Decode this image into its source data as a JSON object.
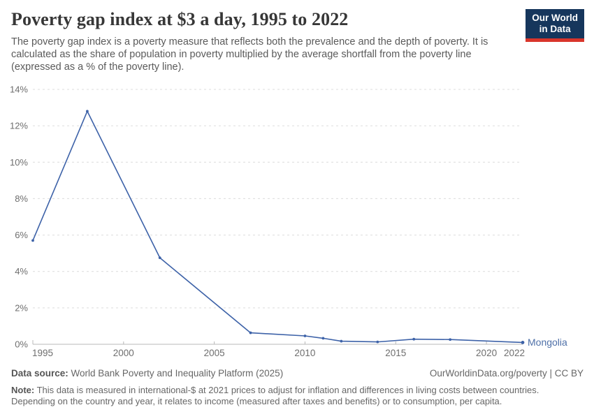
{
  "header": {
    "title": "Poverty gap index at $3 a day, 1995 to 2022",
    "subtitle": "The poverty gap index is a poverty measure that reflects both the prevalence and the depth of poverty. It is calculated as the share of population in poverty multiplied by the average shortfall from the poverty line (expressed as a % of the poverty line).",
    "logo": {
      "line1": "Our World",
      "line2": "in Data",
      "bg_color": "#16365c",
      "stripe_color": "#d9352b"
    }
  },
  "chart_data": {
    "type": "line",
    "title": "Poverty gap index at $3 a day, 1995 to 2022",
    "xlabel": "",
    "ylabel": "",
    "xlim": [
      1995,
      2022
    ],
    "ylim": [
      0,
      14
    ],
    "x_ticks": [
      1995,
      2000,
      2005,
      2010,
      2015,
      2020,
      2022
    ],
    "y_ticks": [
      0,
      2,
      4,
      6,
      8,
      10,
      12,
      14
    ],
    "y_tick_suffix": "%",
    "grid": "horizontal-dashed",
    "legend_position": "end-of-line-label",
    "series": [
      {
        "name": "Mongolia",
        "color": "#3d62a8",
        "label_color": "#4e70a8",
        "x": [
          1995,
          1998,
          2002,
          2007,
          2010,
          2011,
          2012,
          2014,
          2016,
          2018,
          2022
        ],
        "values": [
          5.7,
          12.8,
          4.75,
          0.63,
          0.46,
          0.33,
          0.17,
          0.13,
          0.28,
          0.26,
          0.1
        ]
      }
    ],
    "colors": {
      "grid": "#dcdcdc",
      "axis": "#b8b8b8",
      "tick_text": "#6e6e6e"
    }
  },
  "footer": {
    "datasource_label": "Data source:",
    "datasource_value": " World Bank Poverty and Inequality Platform (2025)",
    "link": "OurWorldinData.org/poverty | CC BY",
    "note_label": "Note:",
    "note_value": " This data is measured in international-$ at 2021 prices to adjust for inflation and differences in living costs between countries. Depending on the country and year, it relates to income (measured after taxes and benefits) or to consumption, per capita."
  }
}
